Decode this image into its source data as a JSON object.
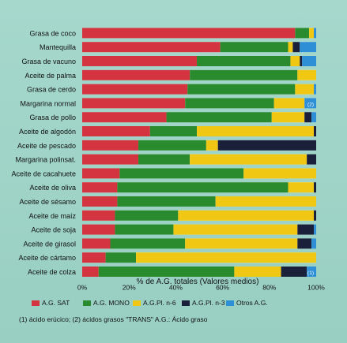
{
  "chart_data": {
    "type": "bar",
    "orientation": "horizontal",
    "stacked": true,
    "xlabel": "% de A.G. totales (Valores medios)",
    "xlim": [
      0,
      100
    ],
    "xticks": [
      "0%",
      "20%",
      "40%",
      "60%",
      "80%",
      "100%"
    ],
    "categories": [
      "Grasa de coco",
      "Mantequilla",
      "Grasa de vacuno",
      "Aceite de palma",
      "Grasa de cerdo",
      "Margarina normal",
      "Grasa de pollo",
      "Aceite de algodón",
      "Aceite de pescado",
      "Margarina polinsat.",
      "Aceite de cacahuete",
      "Aceite de oliva",
      "Aceite de sésamo",
      "Aceite de maíz",
      "Aceite de soja",
      "Aceite de girasol",
      "Aceite de cártamo",
      "Aceite de colza"
    ],
    "series": [
      {
        "name": "A.G. SAT",
        "color": "#d4343f",
        "values": [
          91,
          59,
          49,
          46,
          45,
          44,
          36,
          29,
          24,
          24,
          16,
          15,
          15,
          14,
          14,
          12,
          10,
          7
        ]
      },
      {
        "name": "A.G. MONO",
        "color": "#2a8a2e",
        "values": [
          6,
          29,
          40,
          46,
          46,
          38,
          45,
          20,
          29,
          22,
          53,
          73,
          42,
          27,
          25,
          32,
          13,
          58
        ]
      },
      {
        "name": "A.G.Pl. n-6",
        "color": "#f0c814",
        "values": [
          2,
          2,
          4,
          8,
          8,
          13,
          14,
          50,
          5,
          50,
          31,
          11,
          43,
          58,
          53,
          48,
          77,
          20
        ]
      },
      {
        "name": "A.G.Pl. n-3",
        "color": "#1a1f3a",
        "values": [
          0,
          3,
          1,
          0,
          0,
          0,
          3,
          1,
          42,
          4,
          0,
          1,
          0,
          1,
          7,
          6,
          0,
          11
        ]
      },
      {
        "name": "Otros A.G.",
        "color": "#2e8fd6",
        "values": [
          1,
          7,
          6,
          0,
          1,
          5,
          2,
          0,
          0,
          0,
          0,
          0,
          0,
          0,
          1,
          2,
          0,
          4
        ]
      }
    ],
    "bar_markers": [
      {
        "category": "Margarina normal",
        "text": "(2)"
      },
      {
        "category": "Aceite de colza",
        "text": "(1)"
      }
    ],
    "grid": false,
    "legend_position": "bottom"
  },
  "footnote": "(1) ácido erúcico; (2) ácidos grasos \"TRANS\" A.G.: Ácido graso"
}
